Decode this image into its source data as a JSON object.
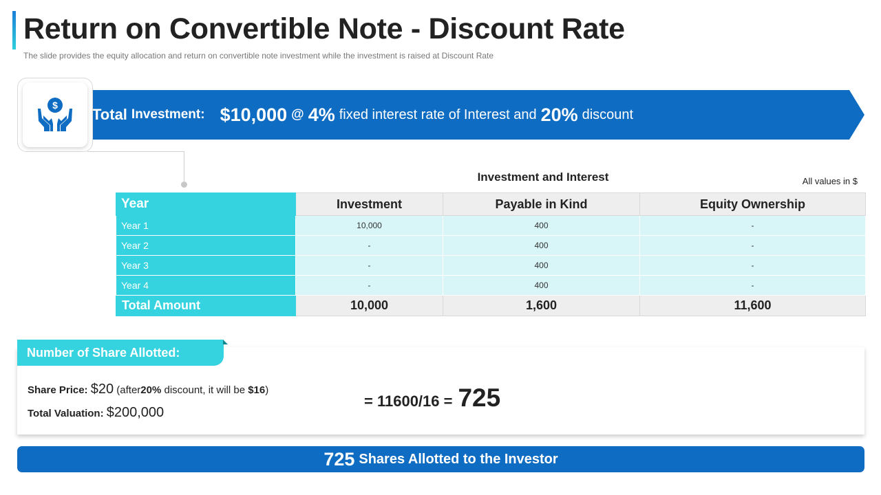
{
  "header": {
    "title": "Return on Convertible Note - Discount Rate",
    "subtitle": "The slide provides the equity allocation and return on convertible note investment while the investment is raised at Discount Rate"
  },
  "banner": {
    "label": "Total",
    "label2": "Investment:",
    "amount": "$10,000",
    "at": "@",
    "rate": "4%",
    "rate_text": "fixed interest rate of Interest and",
    "discount": "20%",
    "discount_text": "discount",
    "icon": "money-hands-icon"
  },
  "table": {
    "title": "Investment and Interest",
    "note": "All values in $",
    "headers": [
      "Year",
      "Investment",
      "Payable in Kind",
      "Equity Ownership"
    ],
    "rows": [
      [
        "Year 1",
        "10,000",
        "400",
        "-"
      ],
      [
        "Year 2",
        "-",
        "400",
        "-"
      ],
      [
        "Year 3",
        "-",
        "400",
        "-"
      ],
      [
        "Year 4",
        "-",
        "400",
        "-"
      ]
    ],
    "total": [
      "Total Amount",
      "10,000",
      "1,600",
      "11,600"
    ]
  },
  "shares": {
    "tab_label": "Number of Share Allotted:",
    "price_label": "Share Price:",
    "price_value": "$20",
    "price_note_pre": "(after",
    "price_note_discount": "20%",
    "price_note_mid": "discount, it will be",
    "price_note_final": "$16",
    "price_note_post": ")",
    "valuation_label": "Total Valuation:",
    "valuation_value": "$200,000",
    "formula": "= 11600/16 =",
    "result": "725"
  },
  "footer": {
    "number": "725",
    "text": "Shares Allotted to the Investor"
  },
  "colors": {
    "primary_blue": "#0f6cc3",
    "accent_cyan": "#35d3df",
    "cell_light": "#d8f6f8"
  }
}
